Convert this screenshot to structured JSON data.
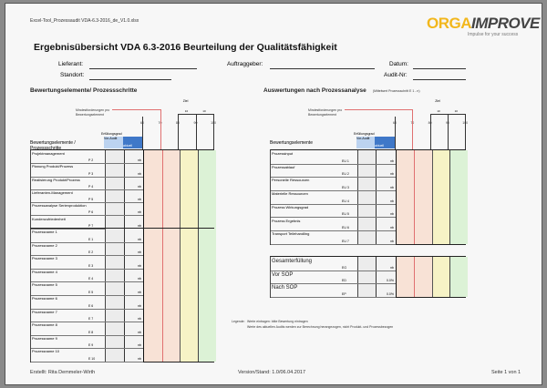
{
  "file_name": "Excel-Tool_Prozessaudit VDA-6.3-2016_de_V1.0.xlsx",
  "logo": {
    "part1": "ORGA",
    "part2": "IMPROVE",
    "tagline": "Impulse for your success"
  },
  "title": "Ergebnisübersicht VDA 6.3-2016 Beurteilung der Qualitätsfähigkeit",
  "fields": {
    "lieferant": "Lieferant:",
    "standort": "Standort:",
    "auftraggeber": "Auftraggeber:",
    "datum": "Datum:",
    "audit_nr": "Audit-Nr:"
  },
  "left": {
    "section_title": "Bewertungselemente/ Prozessschritte",
    "min_req": "Mindestforderungen pro Bewertungselement",
    "ziel": "Ziel",
    "ziel_a": "10",
    "ziel_b": "10",
    "scale": [
      "60",
      "70",
      "80",
      "90",
      "100"
    ],
    "header": "Bewertungselemente / Prozessschritte",
    "erfuellung": "Erfüllungsgrad",
    "vor": "Vor-Audit",
    "akt": "aktuell",
    "rows": [
      {
        "name": "Projektmanagement",
        "code": "P 2",
        "val": "nb"
      },
      {
        "name": "Planung Produkt/Prozess",
        "code": "P 3",
        "val": "nb"
      },
      {
        "name": "Realisierung Produkt/Prozess",
        "code": "P 4",
        "val": "nb"
      },
      {
        "name": "Lieferanten-Management",
        "code": "P 5",
        "val": "nb"
      },
      {
        "name": "Prozessanalyse Serienproduktion",
        "code": "P 6",
        "val": "nb"
      },
      {
        "name": "Kundenzufriedenheit",
        "code": "P 7",
        "val": "nb"
      },
      {
        "name": "Prozessname 1",
        "code": "E 1",
        "val": "nb"
      },
      {
        "name": "Prozessname 2",
        "code": "E 2",
        "val": "nb"
      },
      {
        "name": "Prozessname 3",
        "code": "E 3",
        "val": "nb"
      },
      {
        "name": "Prozessname 4",
        "code": "E 4",
        "val": "nb"
      },
      {
        "name": "Prozessname 5",
        "code": "E 5",
        "val": "nb"
      },
      {
        "name": "Prozessname 6",
        "code": "E 6",
        "val": "nb"
      },
      {
        "name": "Prozessname 7",
        "code": "E 7",
        "val": "nb"
      },
      {
        "name": "Prozessname 8",
        "code": "E 8",
        "val": "nb"
      },
      {
        "name": "Prozessname 9",
        "code": "E 9",
        "val": "nb"
      },
      {
        "name": "Prozessname 10",
        "code": "E 10",
        "val": "nb"
      }
    ]
  },
  "right": {
    "section_title": "Auswertungen nach Prozessanalyse",
    "subtitle": "(Mittelwert Prozessschritt E 1 - n)",
    "min_req": "Mindestforderungen pro Bewertungselement",
    "ziel": "Ziel",
    "ziel_a": "10",
    "ziel_b": "10",
    "scale": [
      "60",
      "70",
      "80",
      "90",
      "100"
    ],
    "header": "Bewertungselemente",
    "erfuellung": "Erfüllungsgrad",
    "vor": "Vor-Audit",
    "akt": "aktuell",
    "rows": [
      {
        "name": "Prozessinput",
        "code": "EU 1",
        "val": "nb"
      },
      {
        "name": "Prozessablauf",
        "code": "EU 2",
        "val": "nb"
      },
      {
        "name": "Personelle Ressourcen",
        "code": "EU 3",
        "val": "nb"
      },
      {
        "name": "Materielle Ressourcen",
        "code": "EU 4",
        "val": "nb"
      },
      {
        "name": "Prozess Wirkungsgrad",
        "code": "EU 5",
        "val": "nb"
      },
      {
        "name": "Prozess Ergebnis",
        "code": "EU 6",
        "val": "nb"
      },
      {
        "name": "Transport Teilehandling",
        "code": "EU 7",
        "val": "nb"
      }
    ],
    "summary": [
      {
        "name": "Gesamterfüllung",
        "code": "EG",
        "val": "nb"
      },
      {
        "name": "Vor SOP",
        "code": "ED",
        "val": "0.0%"
      },
      {
        "name": "Nach SOP",
        "code": "EP",
        "val": "0.0%"
      }
    ]
  },
  "legend": {
    "label": "Legende:",
    "line1": "Werte eintragen: bitte Bewertung eintragen",
    "line2": "Werte des aktuellen Audits werden zur Berechnung herangezogen, nicht Produkt- und Prozessbezogen"
  },
  "footer": {
    "author": "Erstellt: Rita Demmeler-Wirth",
    "version": "Version/Stand: 1.0/06.04.2017",
    "page": "Seite 1 von 1"
  },
  "colors": {
    "red_zone": "#f8e2d6",
    "yellow_zone": "#f6f3c6",
    "green_zone": "#dcf2d6",
    "min_line": "#e07070",
    "vor_header": "#bcd3f0",
    "akt_header": "#3f78c8",
    "logo_orange": "#f2b71c"
  }
}
